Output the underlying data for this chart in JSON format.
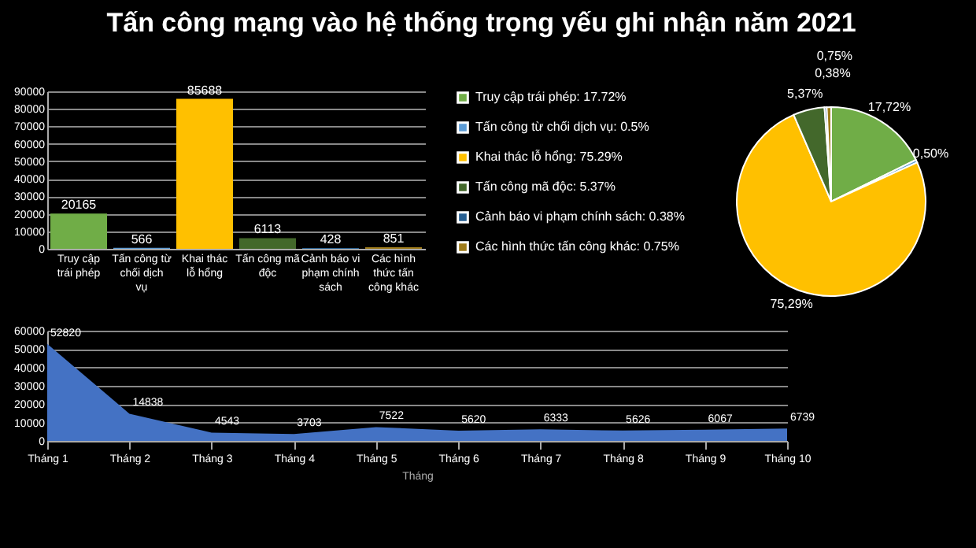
{
  "chart_data": [
    {
      "type": "bar",
      "title": "Tấn công mạng vào hệ thống trọng yếu ghi nhận năm 2021",
      "categories": [
        "Truy cập trái phép",
        "Tấn công từ chối dịch vụ",
        "Khai thác lỗ hổng",
        "Tấn công mã độc",
        "Cảnh báo vi phạm chính sách",
        "Các hình thức tấn công khác"
      ],
      "values": [
        20165,
        566,
        85688,
        6113,
        428,
        851
      ],
      "colors": [
        "#70ad47",
        "#5b9bd5",
        "#ffc000",
        "#43682b",
        "#255e91",
        "#9e7b1a"
      ],
      "ylim": [
        0,
        90000
      ],
      "yticks": [
        0,
        10000,
        20000,
        30000,
        40000,
        50000,
        60000,
        70000,
        80000,
        90000
      ],
      "grid": "y",
      "data_labels": true
    },
    {
      "type": "pie",
      "categories": [
        "Truy cập trái phép: 17.72%",
        "Tấn công từ chối dịch vụ: 0.5%",
        "Khai thác lỗ hổng: 75.29%",
        "Tấn công mã độc: 5.37%",
        "Cảnh báo vi phạm chính sách: 0.38%",
        "Các hình thức tấn công khác: 0.75%"
      ],
      "values": [
        17.72,
        0.5,
        75.29,
        5.37,
        0.38,
        0.75
      ],
      "value_labels": [
        "17,72%",
        "0,50%",
        "75,29%",
        "5,37%",
        "0,38%",
        "0,75%"
      ],
      "colors": [
        "#70ad47",
        "#5b9bd5",
        "#ffc000",
        "#43682b",
        "#255e91",
        "#9e7b1a"
      ],
      "legend": "left"
    },
    {
      "type": "area",
      "xlabel": "Tháng",
      "categories": [
        "Tháng 1",
        "Tháng 2",
        "Tháng 3",
        "Tháng 4",
        "Tháng 5",
        "Tháng 6",
        "Tháng 7",
        "Tháng 8",
        "Tháng 9",
        "Tháng 10"
      ],
      "values": [
        52820,
        14838,
        4543,
        3703,
        7522,
        5620,
        6333,
        5626,
        6067,
        6739
      ],
      "color": "#4472c4",
      "ylim": [
        0,
        60000
      ],
      "yticks": [
        0,
        10000,
        20000,
        30000,
        40000,
        50000,
        60000
      ],
      "grid": "y",
      "data_labels": true
    }
  ]
}
